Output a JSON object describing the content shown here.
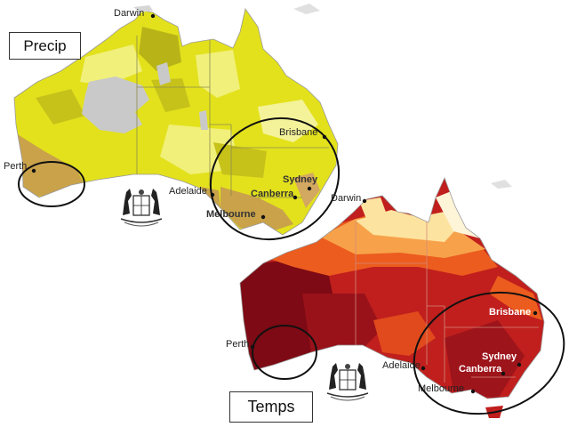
{
  "labels": {
    "precip": "Precip",
    "temps": "Temps"
  },
  "maps": {
    "precip": {
      "cities": [
        "Darwin",
        "Brisbane",
        "Sydney",
        "Canberra",
        "Melbourne",
        "Adelaide",
        "Perth"
      ]
    },
    "temps": {
      "cities": [
        "Darwin",
        "Brisbane",
        "Sydney",
        "Canberra",
        "Melbourne",
        "Adelaide",
        "Perth"
      ]
    }
  },
  "colors": {
    "precip_yellow": "#e3e11c",
    "precip_light": "#f1f07a",
    "precip_olive": "#b8b417",
    "precip_brown": "#c9a24a",
    "precip_grey": "#c9c9c9",
    "temp_dark": "#7d0a14",
    "temp_red": "#c01f1d",
    "temp_orange": "#ec5c1e",
    "temp_light_orange": "#f7a24a",
    "temp_pale": "#fde3a0",
    "circle": "#111111"
  }
}
